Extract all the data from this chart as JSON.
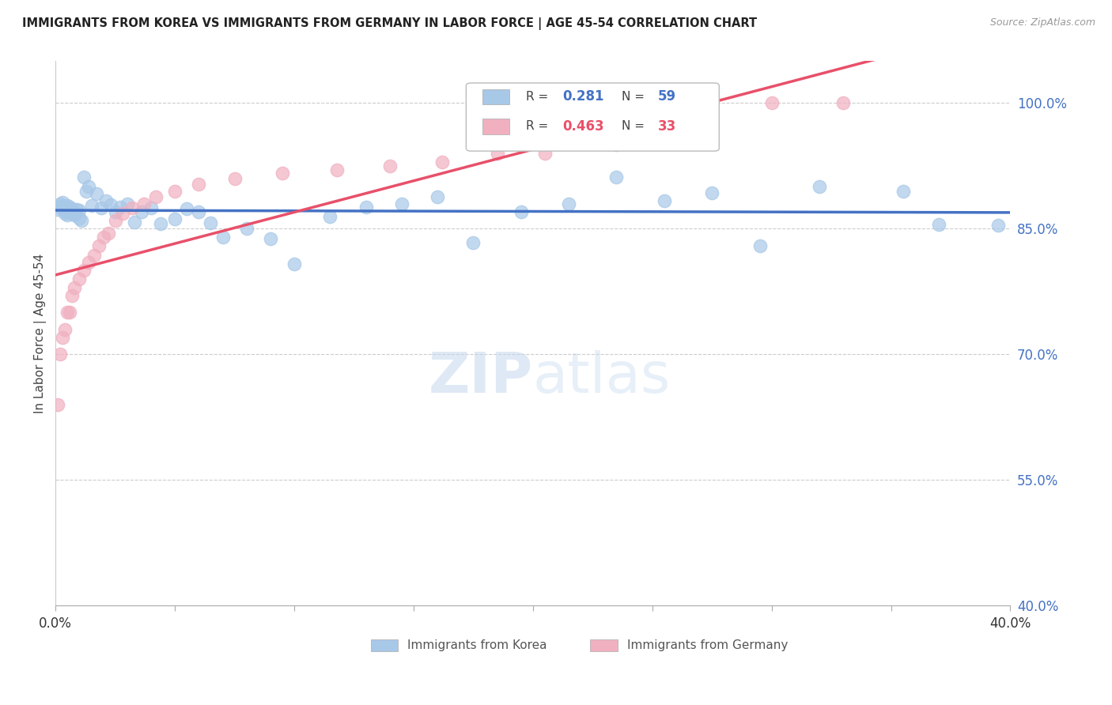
{
  "title": "IMMIGRANTS FROM KOREA VS IMMIGRANTS FROM GERMANY IN LABOR FORCE | AGE 45-54 CORRELATION CHART",
  "source": "Source: ZipAtlas.com",
  "ylabel": "In Labor Force | Age 45-54",
  "xmin": 0.0,
  "xmax": 0.4,
  "ymin": 0.4,
  "ymax": 1.05,
  "yticks": [
    0.4,
    0.55,
    0.7,
    0.85,
    1.0
  ],
  "ytick_labels": [
    "40.0%",
    "55.0%",
    "70.0%",
    "85.0%",
    "100.0%"
  ],
  "xticks": [
    0.0,
    0.05,
    0.1,
    0.15,
    0.2,
    0.25,
    0.3,
    0.35,
    0.4
  ],
  "xtick_labels": [
    "0.0%",
    "",
    "",
    "",
    "",
    "",
    "",
    "",
    "40.0%"
  ],
  "korea_R": 0.281,
  "korea_N": 59,
  "germany_R": 0.463,
  "germany_N": 33,
  "korea_color": "#a8c8e8",
  "germany_color": "#f0b0c0",
  "korea_line_color": "#4472c4",
  "germany_line_color": "#e8506a",
  "background_color": "#ffffff",
  "grid_color": "#cccccc",
  "korea_x": [
    0.001,
    0.002,
    0.002,
    0.003,
    0.003,
    0.004,
    0.004,
    0.004,
    0.005,
    0.005,
    0.005,
    0.006,
    0.006,
    0.007,
    0.007,
    0.008,
    0.008,
    0.009,
    0.01,
    0.01,
    0.011,
    0.012,
    0.013,
    0.014,
    0.015,
    0.017,
    0.019,
    0.021,
    0.023,
    0.025,
    0.027,
    0.03,
    0.033,
    0.036,
    0.04,
    0.044,
    0.05,
    0.055,
    0.06,
    0.065,
    0.07,
    0.08,
    0.09,
    0.1,
    0.115,
    0.13,
    0.145,
    0.16,
    0.175,
    0.195,
    0.215,
    0.235,
    0.255,
    0.275,
    0.295,
    0.32,
    0.355,
    0.37,
    0.395
  ],
  "korea_y": [
    0.873,
    0.88,
    0.876,
    0.882,
    0.877,
    0.868,
    0.875,
    0.871,
    0.87,
    0.878,
    0.866,
    0.872,
    0.876,
    0.868,
    0.874,
    0.869,
    0.866,
    0.873,
    0.872,
    0.863,
    0.86,
    0.912,
    0.895,
    0.9,
    0.878,
    0.892,
    0.875,
    0.883,
    0.879,
    0.87,
    0.876,
    0.88,
    0.858,
    0.87,
    0.875,
    0.856,
    0.862,
    0.874,
    0.87,
    0.857,
    0.84,
    0.85,
    0.838,
    0.808,
    0.865,
    0.876,
    0.88,
    0.888,
    0.833,
    0.87,
    0.88,
    0.912,
    0.883,
    0.893,
    0.83,
    0.9,
    0.895,
    0.855,
    0.854
  ],
  "germany_x": [
    0.001,
    0.002,
    0.003,
    0.004,
    0.005,
    0.006,
    0.007,
    0.008,
    0.01,
    0.012,
    0.014,
    0.016,
    0.018,
    0.02,
    0.022,
    0.025,
    0.028,
    0.032,
    0.037,
    0.042,
    0.05,
    0.06,
    0.075,
    0.095,
    0.118,
    0.14,
    0.162,
    0.185,
    0.205,
    0.235,
    0.265,
    0.3,
    0.33
  ],
  "germany_y": [
    0.64,
    0.7,
    0.72,
    0.73,
    0.75,
    0.75,
    0.77,
    0.78,
    0.79,
    0.8,
    0.81,
    0.818,
    0.83,
    0.84,
    0.845,
    0.86,
    0.868,
    0.875,
    0.88,
    0.888,
    0.895,
    0.903,
    0.91,
    0.916,
    0.92,
    0.925,
    0.93,
    0.94,
    0.94,
    0.95,
    0.955,
    1.0,
    1.0
  ]
}
